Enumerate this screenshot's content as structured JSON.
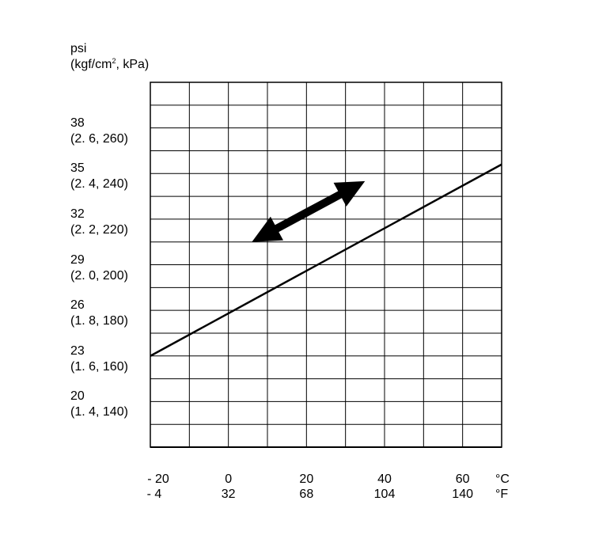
{
  "chart_data": {
    "type": "line",
    "y_unit": {
      "line1": "psi",
      "line2_pre": "(kgf/cm",
      "line2_sup": "2",
      "line2_post": ", kPa)"
    },
    "y_ticks": [
      {
        "psi": "38",
        "alt": "(2. 6, 260)"
      },
      {
        "psi": "35",
        "alt": "(2. 4, 240)"
      },
      {
        "psi": "32",
        "alt": "(2. 2, 220)"
      },
      {
        "psi": "29",
        "alt": "(2. 0, 200)"
      },
      {
        "psi": "26",
        "alt": "(1. 8, 180)"
      },
      {
        "psi": "23",
        "alt": "(1. 6, 160)"
      },
      {
        "psi": "20",
        "alt": "(1. 4, 140)"
      }
    ],
    "x_ticks_c": [
      "- 20",
      "0",
      "20",
      "40",
      "60"
    ],
    "x_ticks_f": [
      "- 4",
      "32",
      "68",
      "104",
      "140"
    ],
    "x_unit_c": "°C",
    "x_unit_f": "°F",
    "xlim": [
      -20,
      70
    ],
    "ylim_psi": [
      17,
      41
    ],
    "series": [
      {
        "x": [
          -20,
          70
        ],
        "y": [
          23,
          35.6
        ]
      }
    ],
    "annotations": [
      {
        "type": "double-arrow",
        "from": {
          "x": 6,
          "y": 30.5
        },
        "to": {
          "x": 35,
          "y": 34.5
        }
      }
    ]
  }
}
